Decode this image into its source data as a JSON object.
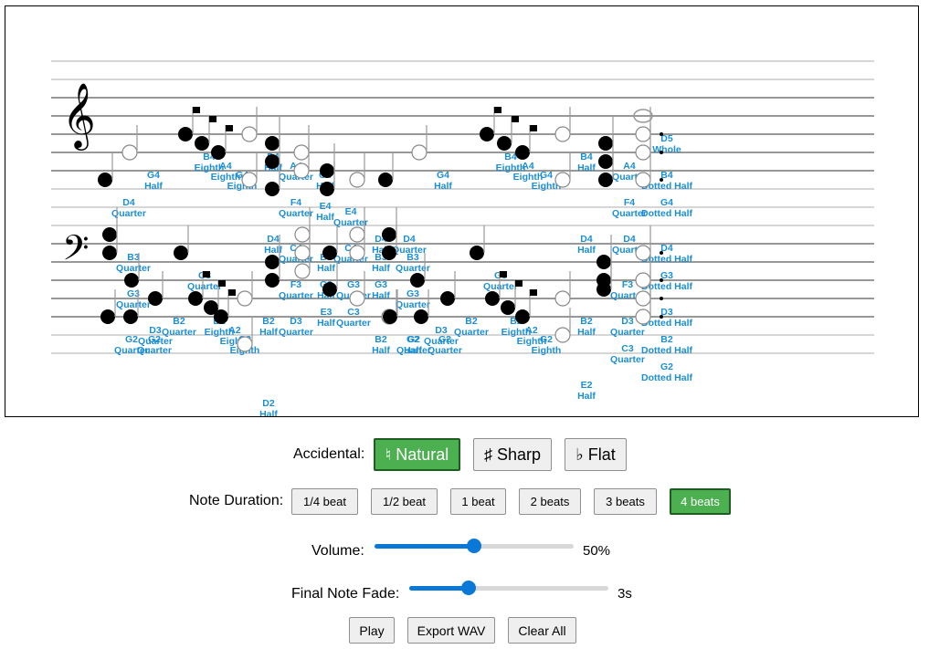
{
  "labels": {
    "accidental": "Accidental:",
    "duration": "Note Duration:",
    "volume": "Volume:",
    "fade": "Final Note Fade:"
  },
  "accidentals": [
    {
      "label": "♮ Natural",
      "selected": true
    },
    {
      "label": "♯ Sharp",
      "selected": false
    },
    {
      "label": "♭ Flat",
      "selected": false
    }
  ],
  "durations": [
    {
      "label": "1/4 beat",
      "selected": false
    },
    {
      "label": "1/2 beat",
      "selected": false
    },
    {
      "label": "1 beat",
      "selected": false
    },
    {
      "label": "2 beats",
      "selected": false
    },
    {
      "label": "3 beats",
      "selected": false
    },
    {
      "label": "4 beats",
      "selected": true
    }
  ],
  "volume": {
    "value": 50,
    "display": "50%"
  },
  "fade": {
    "value": 3,
    "max": 10,
    "display": "3s"
  },
  "actions": {
    "play": "Play",
    "export": "Export WAV",
    "clear": "Clear All"
  },
  "colors": {
    "accent": "#4caf50",
    "slider": "#0a78d6",
    "note_label": "#1a8fd6"
  },
  "clefs": {
    "treble": "𝄞",
    "bass": "𝄢"
  },
  "notes": [
    {
      "pitch": "D4",
      "dur": "Quarter",
      "stem": "up",
      "dots": 0,
      "fill": true
    },
    {
      "pitch": "G4",
      "dur": "Half",
      "stem": "up",
      "dots": 0,
      "fill": false
    },
    {
      "pitch": "B4",
      "dur": "Eighth",
      "stem": "up",
      "dots": 0,
      "fill": true
    },
    {
      "pitch": "A4",
      "dur": "Eighth",
      "stem": "up",
      "dots": 0,
      "fill": true
    },
    {
      "pitch": "G4",
      "dur": "Eighth",
      "stem": "up",
      "dots": 0,
      "fill": true
    },
    {
      "pitch": "B4",
      "dur": "Half",
      "stem": "up",
      "dots": 0,
      "fill": false
    },
    {
      "pitch": "A4",
      "dur": "Quarter",
      "stem": "up",
      "dots": 0,
      "fill": true
    },
    {
      "pitch": "D4",
      "dur": "Half",
      "stem": "up",
      "dots": 0,
      "fill": false
    },
    {
      "pitch": "F4",
      "dur": "Quarter",
      "stem": "up",
      "dots": 0,
      "fill": true
    },
    {
      "pitch": "C4",
      "dur": "Quarter",
      "stem": "up",
      "dots": 0,
      "fill": true
    },
    {
      "pitch": "G4",
      "dur": "Half",
      "stem": "up",
      "dots": 0,
      "fill": false
    },
    {
      "pitch": "E4",
      "dur": "Half",
      "stem": "up",
      "dots": 0,
      "fill": false
    },
    {
      "pitch": "E4",
      "dur": "Quarter",
      "stem": "up",
      "dots": 0,
      "fill": true
    },
    {
      "pitch": "C4",
      "dur": "Quarter",
      "stem": "up",
      "dots": 0,
      "fill": true
    },
    {
      "pitch": "D4",
      "dur": "Half",
      "stem": "up",
      "dots": 0,
      "fill": false
    },
    {
      "pitch": "D4",
      "dur": "Quarter",
      "stem": "up",
      "dots": 0,
      "fill": true
    },
    {
      "pitch": "G4",
      "dur": "Half",
      "stem": "up",
      "dots": 0,
      "fill": false
    },
    {
      "pitch": "B4",
      "dur": "Eighth",
      "stem": "up",
      "dots": 0,
      "fill": true
    },
    {
      "pitch": "A4",
      "dur": "Eighth",
      "stem": "up",
      "dots": 0,
      "fill": true
    },
    {
      "pitch": "G4",
      "dur": "Eighth",
      "stem": "up",
      "dots": 0,
      "fill": true
    },
    {
      "pitch": "B4",
      "dur": "Half",
      "stem": "up",
      "dots": 0,
      "fill": false
    },
    {
      "pitch": "D4",
      "dur": "Half",
      "stem": "up",
      "dots": 0,
      "fill": false
    },
    {
      "pitch": "A4",
      "dur": "Quarter",
      "stem": "up",
      "dots": 0,
      "fill": true
    },
    {
      "pitch": "F4",
      "dur": "Quarter",
      "stem": "up",
      "dots": 0,
      "fill": true
    },
    {
      "pitch": "D4",
      "dur": "Quarter",
      "stem": "up",
      "dots": 0,
      "fill": true
    },
    {
      "pitch": "D5",
      "dur": "Whole",
      "stem": "none",
      "dots": 0,
      "fill": false
    },
    {
      "pitch": "B4",
      "dur": "Dotted Half",
      "stem": "up",
      "dots": 1,
      "fill": false
    },
    {
      "pitch": "G4",
      "dur": "Dotted Half",
      "stem": "up",
      "dots": 1,
      "fill": false
    },
    {
      "pitch": "D4",
      "dur": "Dotted Half",
      "stem": "up",
      "dots": 1,
      "fill": false
    },
    {
      "pitch": "B3",
      "dur": "Quarter",
      "stem": "up",
      "dots": 0,
      "fill": true
    },
    {
      "pitch": "G3",
      "dur": "Quarter",
      "stem": "up",
      "dots": 0,
      "fill": true
    },
    {
      "pitch": "G2",
      "dur": "Quarter",
      "stem": "up",
      "dots": 0,
      "fill": true
    },
    {
      "pitch": "D3",
      "dur": "Quarter",
      "stem": "up",
      "dots": 0,
      "fill": true
    },
    {
      "pitch": "G2",
      "dur": "Quarter",
      "stem": "up",
      "dots": 0,
      "fill": true
    },
    {
      "pitch": "B2",
      "dur": "Quarter",
      "stem": "up",
      "dots": 0,
      "fill": true
    },
    {
      "pitch": "G3",
      "dur": "Quarter",
      "stem": "up",
      "dots": 0,
      "fill": true
    },
    {
      "pitch": "B2",
      "dur": "Eighth",
      "stem": "up",
      "dots": 0,
      "fill": true
    },
    {
      "pitch": "A2",
      "dur": "Eighth",
      "stem": "up",
      "dots": 0,
      "fill": true
    },
    {
      "pitch": "G2",
      "dur": "Eighth",
      "stem": "up",
      "dots": 0,
      "fill": true
    },
    {
      "pitch": "B2",
      "dur": "Half",
      "stem": "up",
      "dots": 0,
      "fill": false
    },
    {
      "pitch": "D2",
      "dur": "Half",
      "stem": "up",
      "dots": 0,
      "fill": false
    },
    {
      "pitch": "F3",
      "dur": "Quarter",
      "stem": "up",
      "dots": 0,
      "fill": true
    },
    {
      "pitch": "D3",
      "dur": "Quarter",
      "stem": "up",
      "dots": 0,
      "fill": true
    },
    {
      "pitch": "B3",
      "dur": "Half",
      "stem": "up",
      "dots": 0,
      "fill": false
    },
    {
      "pitch": "G3",
      "dur": "Half",
      "stem": "up",
      "dots": 0,
      "fill": false
    },
    {
      "pitch": "E3",
      "dur": "Half",
      "stem": "up",
      "dots": 0,
      "fill": false
    },
    {
      "pitch": "C3",
      "dur": "Quarter",
      "stem": "up",
      "dots": 0,
      "fill": true
    },
    {
      "pitch": "G3",
      "dur": "Quarter",
      "stem": "up",
      "dots": 0,
      "fill": true
    },
    {
      "pitch": "B3",
      "dur": "Half",
      "stem": "up",
      "dots": 0,
      "fill": false
    },
    {
      "pitch": "G3",
      "dur": "Half",
      "stem": "up",
      "dots": 0,
      "fill": false
    },
    {
      "pitch": "B2",
      "dur": "Half",
      "stem": "up",
      "dots": 0,
      "fill": false
    },
    {
      "pitch": "G2",
      "dur": "Half",
      "stem": "up",
      "dots": 0,
      "fill": false
    },
    {
      "pitch": "B3",
      "dur": "Quarter",
      "stem": "up",
      "dots": 0,
      "fill": true
    },
    {
      "pitch": "G3",
      "dur": "Quarter",
      "stem": "up",
      "dots": 0,
      "fill": true
    },
    {
      "pitch": "G2",
      "dur": "Quarter",
      "stem": "up",
      "dots": 0,
      "fill": true
    },
    {
      "pitch": "D3",
      "dur": "Quarter",
      "stem": "up",
      "dots": 0,
      "fill": true
    },
    {
      "pitch": "G2",
      "dur": "Quarter",
      "stem": "up",
      "dots": 0,
      "fill": true
    },
    {
      "pitch": "B2",
      "dur": "Quarter",
      "stem": "up",
      "dots": 0,
      "fill": true
    },
    {
      "pitch": "G3",
      "dur": "Quarter",
      "stem": "up",
      "dots": 0,
      "fill": true
    },
    {
      "pitch": "B2",
      "dur": "Eighth",
      "stem": "up",
      "dots": 0,
      "fill": true
    },
    {
      "pitch": "A2",
      "dur": "Eighth",
      "stem": "up",
      "dots": 0,
      "fill": true
    },
    {
      "pitch": "G2",
      "dur": "Eighth",
      "stem": "up",
      "dots": 0,
      "fill": true
    },
    {
      "pitch": "B2",
      "dur": "Half",
      "stem": "up",
      "dots": 0,
      "fill": false
    },
    {
      "pitch": "E2",
      "dur": "Half",
      "stem": "up",
      "dots": 0,
      "fill": false
    },
    {
      "pitch": "F3",
      "dur": "Quarter",
      "stem": "up",
      "dots": 0,
      "fill": true
    },
    {
      "pitch": "D3",
      "dur": "Quarter",
      "stem": "up",
      "dots": 0,
      "fill": true
    },
    {
      "pitch": "C3",
      "dur": "Quarter",
      "stem": "up",
      "dots": 0,
      "fill": true
    },
    {
      "pitch": "G3",
      "dur": "Dotted Half",
      "stem": "up",
      "dots": 1,
      "fill": false
    },
    {
      "pitch": "D3",
      "dur": "Dotted Half",
      "stem": "up",
      "dots": 1,
      "fill": false
    },
    {
      "pitch": "B2",
      "dur": "Dotted Half",
      "stem": "up",
      "dots": 1,
      "fill": false
    },
    {
      "pitch": "G2",
      "dur": "Dotted Half",
      "stem": "up",
      "dots": 1,
      "fill": false
    }
  ]
}
